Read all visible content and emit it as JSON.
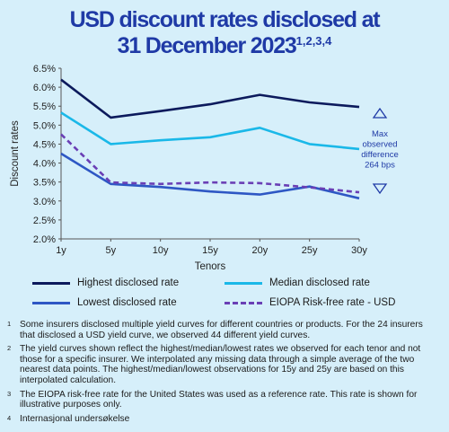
{
  "title": {
    "line1": "USD discount rates disclosed at",
    "line2": "31 December 2023",
    "sup": "1,2,3,4"
  },
  "chart_data": {
    "type": "line",
    "x": [
      "1y",
      "5y",
      "10y",
      "15y",
      "20y",
      "25y",
      "30y"
    ],
    "xlabel": "Tenors",
    "ylabel": "Discount rates",
    "ylim": [
      2.0,
      6.5
    ],
    "yticks": [
      "2.0%",
      "2.5%",
      "3.0%",
      "3.5%",
      "4.0%",
      "4.5%",
      "5.0%",
      "5.5%",
      "6.0%",
      "6.5%"
    ],
    "series": [
      {
        "name": "Highest disclosed rate",
        "color": "#0c1a5c",
        "dash": false,
        "values": [
          6.2,
          5.2,
          5.37,
          5.55,
          5.8,
          5.6,
          5.48
        ]
      },
      {
        "name": "Median disclosed rate",
        "color": "#1ab8e8",
        "dash": false,
        "values": [
          5.33,
          4.5,
          4.6,
          4.68,
          4.93,
          4.5,
          4.37
        ]
      },
      {
        "name": "Lowest disclosed rate",
        "color": "#2e57c4",
        "dash": false,
        "values": [
          4.25,
          3.45,
          3.37,
          3.25,
          3.17,
          3.38,
          3.07
        ]
      },
      {
        "name": "EIOPA Risk-free rate - USD",
        "color": "#6a3fb5",
        "dash": true,
        "values": [
          4.76,
          3.49,
          3.45,
          3.49,
          3.47,
          3.36,
          3.23
        ]
      }
    ],
    "annotation": {
      "text": [
        "Max",
        "observed",
        "difference",
        "264 bps"
      ]
    },
    "grid": false
  },
  "notes": [
    {
      "num": "1",
      "text": "Some insurers disclosed multiple yield curves for different countries or products. For the 24 insurers that disclosed a USD yield curve, we observed 44 different yield curves."
    },
    {
      "num": "2",
      "text": "The yield curves shown reflect the highest/median/lowest rates we observed for each tenor and not those for a specific insurer. We interpolated any missing data through a simple average of the two nearest data points. The highest/median/lowest observations for 15y and 25y are based on this interpolated calculation."
    },
    {
      "num": "3",
      "text": "The EIOPA risk-free rate for the United States was used as a reference rate. This rate is shown for illustrative purposes only."
    },
    {
      "num": "4",
      "text": "Internasjonal undersøkelse"
    }
  ]
}
